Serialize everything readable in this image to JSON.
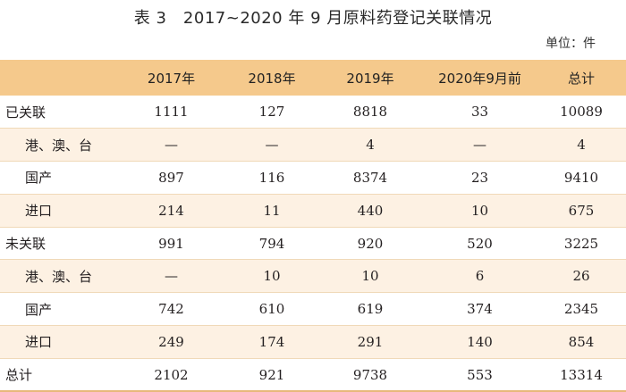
{
  "title": "表 3　2017~2020 年 9 月原料药登记关联情况",
  "unit": "单位：件",
  "columns": [
    "",
    "2017年",
    "2018年",
    "2019年",
    "2020年9月前",
    "总计"
  ],
  "rows": [
    {
      "label": "已关联",
      "sub": false,
      "values": [
        "1111",
        "127",
        "8818",
        "33",
        "10089"
      ]
    },
    {
      "label": "港、澳、台",
      "sub": true,
      "values": [
        "—",
        "—",
        "4",
        "—",
        "4"
      ]
    },
    {
      "label": "国产",
      "sub": true,
      "values": [
        "897",
        "116",
        "8374",
        "23",
        "9410"
      ]
    },
    {
      "label": "进口",
      "sub": true,
      "values": [
        "214",
        "11",
        "440",
        "10",
        "675"
      ]
    },
    {
      "label": "未关联",
      "sub": false,
      "values": [
        "991",
        "794",
        "920",
        "520",
        "3225"
      ]
    },
    {
      "label": "港、澳、台",
      "sub": true,
      "values": [
        "—",
        "10",
        "10",
        "6",
        "26"
      ]
    },
    {
      "label": "国产",
      "sub": true,
      "values": [
        "742",
        "610",
        "619",
        "374",
        "2345"
      ]
    },
    {
      "label": "进口",
      "sub": true,
      "values": [
        "249",
        "174",
        "291",
        "140",
        "854"
      ]
    },
    {
      "label": "总计",
      "sub": false,
      "values": [
        "2102",
        "921",
        "9738",
        "553",
        "13314"
      ]
    }
  ],
  "colors": {
    "header_bg": "#f5c98c",
    "alt_row_bg": "#fdf1e3",
    "rule": "#f0d9b8"
  }
}
